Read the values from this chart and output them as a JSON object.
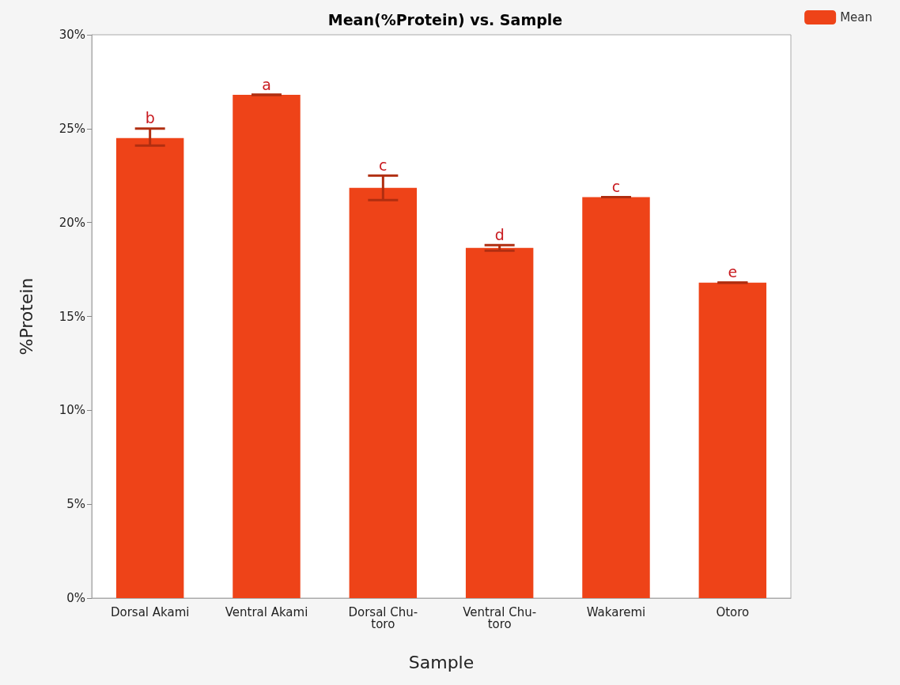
{
  "chart_data": {
    "type": "bar",
    "title": "Mean(%Protein) vs. Sample",
    "xlabel": "Sample",
    "ylabel": "%Protein",
    "categories": [
      "Dorsal Akami",
      "Ventral Akami",
      "Dorsal Chu-toro",
      "Ventral Chu-toro",
      "Wakaremi",
      "Otoro"
    ],
    "series": [
      {
        "name": "Mean",
        "color": "#ee4318",
        "values": [
          24.5,
          26.8,
          21.85,
          18.65,
          21.35,
          16.8
        ],
        "errors": [
          [
            24.1,
            25.0
          ],
          [
            26.8,
            26.8
          ],
          [
            21.2,
            22.5
          ],
          [
            18.5,
            18.8
          ],
          [
            21.35,
            21.35
          ],
          [
            16.8,
            16.8
          ]
        ]
      }
    ],
    "ylim": [
      0,
      30
    ],
    "yticks": [
      {
        "value": 0,
        "label": "0%"
      },
      {
        "value": 5,
        "label": "5%"
      },
      {
        "value": 10,
        "label": "10%"
      },
      {
        "value": 15,
        "label": "15%"
      },
      {
        "value": 20,
        "label": "20%"
      },
      {
        "value": 25,
        "label": "25%"
      },
      {
        "value": 30,
        "label": "30%"
      }
    ],
    "annotations": [
      {
        "text": "b",
        "x": "Dorsal Akami",
        "y": 25.0
      },
      {
        "text": "a",
        "x": "Ventral Akami",
        "y": 26.8
      },
      {
        "text": "c",
        "x": "Dorsal Chu-toro",
        "y": 22.5
      },
      {
        "text": "d",
        "x": "Ventral Chu-toro",
        "y": 18.8
      },
      {
        "text": "c",
        "x": "Wakaremi",
        "y": 21.35
      },
      {
        "text": "e",
        "x": "Otoro",
        "y": 16.8
      }
    ],
    "grid": false,
    "legend": "top right"
  }
}
